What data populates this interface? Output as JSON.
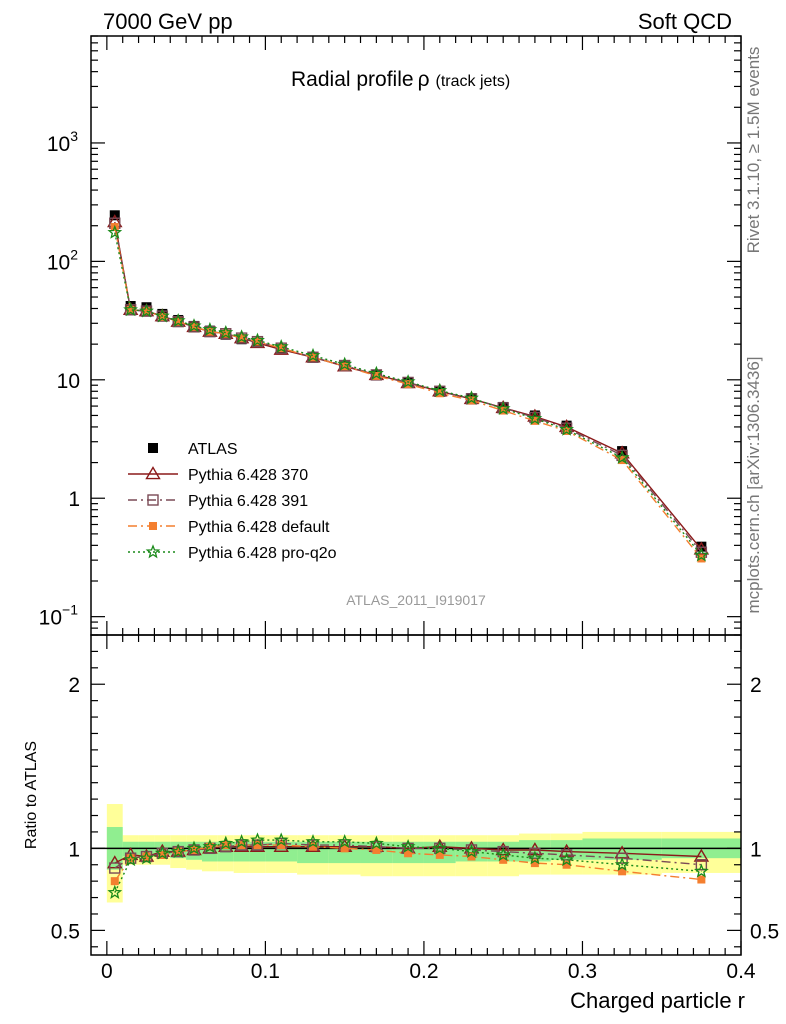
{
  "header": {
    "left": "7000 GeV pp",
    "right": "Soft QCD"
  },
  "side_text": {
    "top": "Rivet 3.1.10, ≥ 1.5M events",
    "bottom": "mcplots.cern.ch [arXiv:1306.3436]"
  },
  "chart_data": [
    {
      "type": "scatter",
      "panel": "main",
      "title": "Radial profile",
      "title_symbol": "ρ",
      "title_suffix": "(track jets)",
      "watermark": "ATLAS_2011_I919017",
      "y_scale": "log",
      "ylim": [
        0.07,
        8000
      ],
      "xlim": [
        -0.01,
        0.4
      ],
      "y_tick_labels": [
        {
          "value": 1000,
          "base": "10",
          "exp": "3"
        },
        {
          "value": 100,
          "base": "10",
          "exp": "2"
        },
        {
          "value": 10,
          "base": "10",
          "exp": ""
        },
        {
          "value": 1,
          "base": "1",
          "exp": ""
        },
        {
          "value": 0.1,
          "base": "10",
          "exp": "−1"
        }
      ],
      "x": [
        0.005,
        0.015,
        0.025,
        0.035,
        0.045,
        0.055,
        0.065,
        0.075,
        0.085,
        0.095,
        0.11,
        0.13,
        0.15,
        0.17,
        0.19,
        0.21,
        0.23,
        0.25,
        0.27,
        0.29,
        0.325,
        0.375
      ],
      "series": [
        {
          "name": "ATLAS",
          "color": "#000000",
          "marker": "square",
          "line": "none",
          "values": [
            245,
            42,
            41,
            36,
            32,
            28.5,
            26,
            24,
            22,
            20.5,
            18,
            15.5,
            13,
            11,
            9.5,
            8,
            7,
            5.9,
            5,
            4.1,
            2.5,
            0.39
          ]
        },
        {
          "name": "Pythia 6.428 370",
          "color": "#8b1a1a",
          "marker": "triangle",
          "line": "solid",
          "values": [
            215,
            39,
            38,
            34.5,
            31,
            28,
            25.5,
            24.5,
            22.5,
            20.5,
            18,
            15.5,
            13,
            11,
            9.4,
            8,
            6.9,
            5.8,
            4.9,
            4,
            2.4,
            0.37
          ]
        },
        {
          "name": "Pythia 6.428 391",
          "color": "#7a4a56",
          "marker": "open-square",
          "line": "dashdot",
          "values": [
            210,
            39,
            38,
            34.5,
            31,
            28,
            25.5,
            24.5,
            22.5,
            21,
            18.5,
            15.5,
            13.2,
            11,
            9.5,
            8,
            6.9,
            5.8,
            4.8,
            3.9,
            2.3,
            0.35
          ]
        },
        {
          "name": "Pythia 6.428 default",
          "color": "#f47f2f",
          "marker": "filled-square",
          "line": "dashdot",
          "values": [
            195,
            39,
            38,
            34,
            31,
            28,
            25.5,
            24.5,
            22.5,
            21,
            18.5,
            15.5,
            13,
            10.8,
            9.2,
            7.7,
            6.7,
            5.5,
            4.5,
            3.7,
            2.1,
            0.31
          ]
        },
        {
          "name": "Pythia 6.428 pro-q2o",
          "color": "#1a8a1a",
          "marker": "star",
          "line": "dotted",
          "values": [
            175,
            39,
            38,
            34.5,
            31.5,
            28.5,
            26.5,
            25,
            23,
            21.5,
            19,
            16,
            13.5,
            11.3,
            9.6,
            8.1,
            7,
            5.7,
            4.7,
            3.8,
            2.2,
            0.33
          ]
        }
      ]
    },
    {
      "type": "scatter",
      "panel": "ratio",
      "ylabel": "Ratio to ATLAS",
      "xlabel": "Charged particle r",
      "ylim": [
        0.35,
        2.3
      ],
      "xlim": [
        -0.01,
        0.4
      ],
      "y_ticks": [
        0.5,
        1,
        2
      ],
      "y_tick_labels": [
        "0.5",
        "1",
        "2"
      ],
      "x_ticks": [
        0,
        0.1,
        0.2,
        0.3,
        0.4
      ],
      "x_tick_labels": [
        "0",
        "0.1",
        "0.2",
        "0.3",
        "0.4"
      ],
      "x_edges": [
        0,
        0.01,
        0.02,
        0.03,
        0.04,
        0.05,
        0.06,
        0.07,
        0.08,
        0.09,
        0.1,
        0.12,
        0.14,
        0.16,
        0.18,
        0.2,
        0.22,
        0.24,
        0.26,
        0.28,
        0.3,
        0.35,
        0.4
      ],
      "band_stat": {
        "lower": [
          0.87,
          0.95,
          0.96,
          0.96,
          0.94,
          0.93,
          0.92,
          0.92,
          0.92,
          0.92,
          0.92,
          0.91,
          0.91,
          0.91,
          0.91,
          0.91,
          0.92,
          0.92,
          0.92,
          0.93,
          0.93,
          0.94
        ],
        "upper": [
          1.13,
          1.04,
          1.04,
          1.04,
          1.04,
          1.04,
          1.04,
          1.04,
          1.04,
          1.04,
          1.04,
          1.04,
          1.04,
          1.04,
          1.04,
          1.04,
          1.04,
          1.04,
          1.05,
          1.05,
          1.06,
          1.06
        ]
      },
      "band_syst": {
        "lower": [
          0.67,
          0.9,
          0.9,
          0.9,
          0.88,
          0.87,
          0.86,
          0.86,
          0.85,
          0.85,
          0.85,
          0.84,
          0.84,
          0.83,
          0.83,
          0.83,
          0.83,
          0.83,
          0.84,
          0.84,
          0.84,
          0.85
        ],
        "upper": [
          1.27,
          1.08,
          1.08,
          1.08,
          1.08,
          1.08,
          1.08,
          1.08,
          1.08,
          1.08,
          1.08,
          1.08,
          1.08,
          1.08,
          1.08,
          1.08,
          1.08,
          1.08,
          1.09,
          1.09,
          1.1,
          1.1
        ]
      },
      "band_colors": {
        "stat": "#90ee90",
        "syst": "#ffff99"
      },
      "x": [
        0.005,
        0.015,
        0.025,
        0.035,
        0.045,
        0.055,
        0.065,
        0.075,
        0.085,
        0.095,
        0.11,
        0.13,
        0.15,
        0.17,
        0.19,
        0.21,
        0.23,
        0.25,
        0.27,
        0.29,
        0.325,
        0.375
      ],
      "series": [
        {
          "name": "Pythia 6.428 370",
          "color": "#8b1a1a",
          "marker": "triangle",
          "line": "solid",
          "values": [
            0.91,
            0.96,
            0.95,
            0.98,
            0.98,
            0.99,
            1.0,
            1.01,
            1.01,
            1.01,
            1.01,
            1.01,
            1.01,
            1.01,
            1.0,
            1.01,
            1.0,
            0.99,
            0.99,
            0.98,
            0.97,
            0.95
          ]
        },
        {
          "name": "Pythia 6.428 391",
          "color": "#7a4a56",
          "marker": "open-square",
          "line": "dashdot",
          "values": [
            0.88,
            0.94,
            0.95,
            0.97,
            0.98,
            0.99,
            1.0,
            1.01,
            1.02,
            1.02,
            1.03,
            1.02,
            1.02,
            1.01,
            1.0,
            1.0,
            0.99,
            0.98,
            0.97,
            0.96,
            0.94,
            0.9
          ]
        },
        {
          "name": "Pythia 6.428 default",
          "color": "#f47f2f",
          "marker": "filled-square",
          "line": "dashdot",
          "values": [
            0.8,
            0.94,
            0.95,
            0.96,
            0.98,
            0.99,
            1.01,
            1.02,
            1.02,
            1.02,
            1.02,
            1.01,
            1.0,
            0.99,
            0.97,
            0.96,
            0.95,
            0.93,
            0.91,
            0.9,
            0.86,
            0.81
          ]
        },
        {
          "name": "Pythia 6.428 pro-q2o",
          "color": "#1a8a1a",
          "marker": "star",
          "line": "dotted",
          "values": [
            0.73,
            0.93,
            0.94,
            0.97,
            0.98,
            1.0,
            1.01,
            1.03,
            1.04,
            1.05,
            1.05,
            1.04,
            1.04,
            1.03,
            1.01,
            1.0,
            0.98,
            0.96,
            0.94,
            0.93,
            0.9,
            0.86
          ]
        }
      ]
    }
  ]
}
